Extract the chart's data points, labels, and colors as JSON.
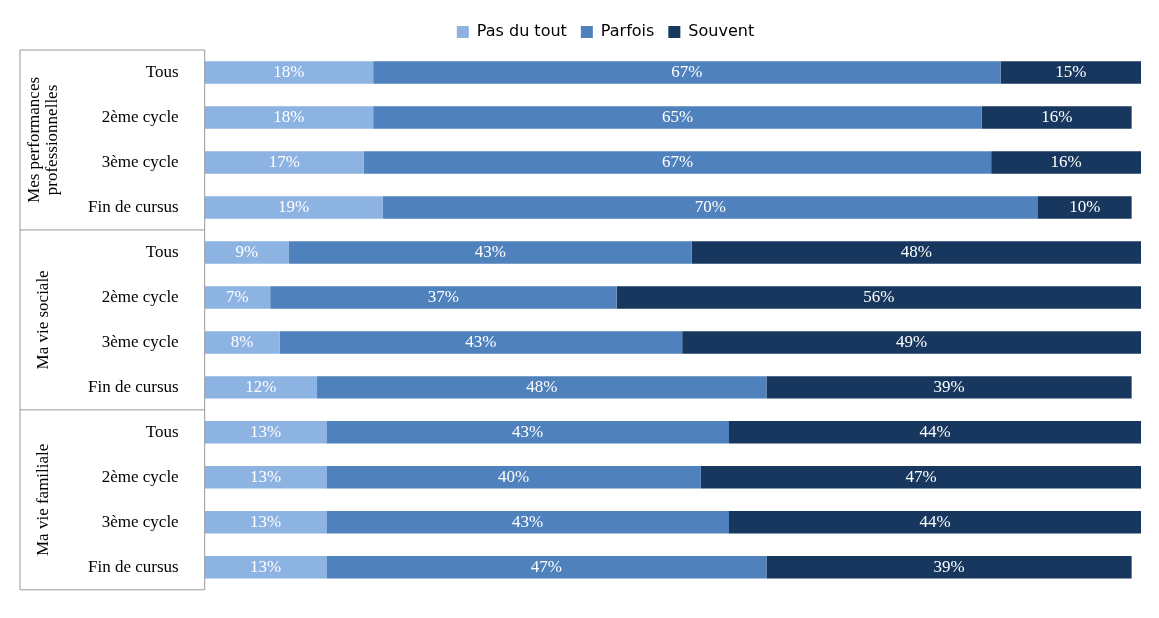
{
  "chart_data": {
    "type": "bar",
    "orientation": "horizontal",
    "stacked": true,
    "tick_labels": "y",
    "legend": "top",
    "categories": [
      "Tous",
      "2ème cycle",
      "3ème cycle",
      "Fin de cursus",
      "Tous",
      "2ème cycle",
      "3ème cycle",
      "Fin de cursus",
      "Tous",
      "2ème cycle",
      "3ème cycle",
      "Fin de cursus"
    ],
    "annotations": [
      "Mes performances professionnelles",
      "Ma vie sociale",
      "Ma vie familiale"
    ],
    "series": [
      {
        "name": "Pas du tout",
        "color": "#8db3e2",
        "values": [
          18,
          18,
          17,
          19,
          9,
          7,
          8,
          12,
          13,
          13,
          13,
          13
        ],
        "value_labels": [
          "18%",
          "18%",
          "17%",
          "19%",
          "9%",
          "7%",
          "8%",
          "12%",
          "13%",
          "13%",
          "13%",
          "13%"
        ]
      },
      {
        "name": "Parfois",
        "color": "#4f81bd",
        "values": [
          67,
          65,
          67,
          70,
          43,
          37,
          43,
          48,
          43,
          40,
          43,
          47
        ],
        "value_labels": [
          "67%",
          "65%",
          "67%",
          "70%",
          "43%",
          "37%",
          "43%",
          "48%",
          "43%",
          "40%",
          "43%",
          "47%"
        ]
      },
      {
        "name": "Souvent",
        "color": "#17375e",
        "values": [
          15,
          16,
          16,
          10,
          48,
          56,
          49,
          39,
          44,
          47,
          44,
          39
        ],
        "value_labels": [
          "15%",
          "16%",
          "16%",
          "10%",
          "48%",
          "56%",
          "49%",
          "39%",
          "44%",
          "47%",
          "44%",
          "39%"
        ]
      }
    ]
  }
}
